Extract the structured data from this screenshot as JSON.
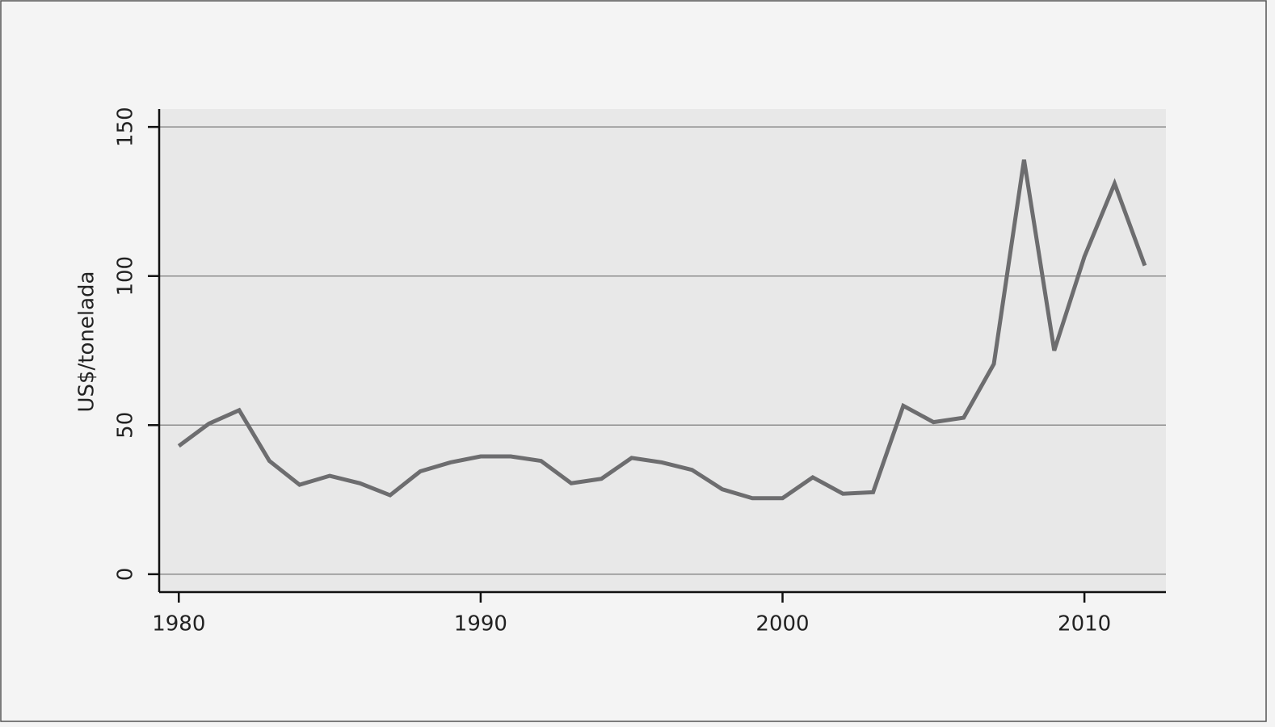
{
  "chart_data": {
    "type": "line",
    "y_label": "US$/tonelada",
    "x": [
      1980,
      1981,
      1982,
      1983,
      1984,
      1985,
      1986,
      1987,
      1988,
      1989,
      1990,
      1991,
      1992,
      1993,
      1994,
      1995,
      1996,
      1997,
      1998,
      1999,
      2000,
      2001,
      2002,
      2003,
      2004,
      2005,
      2006,
      2007,
      2008,
      2009,
      2010,
      2011,
      2012
    ],
    "series": [
      {
        "color": "#6d6d6f",
        "values": [
          43,
          50.5,
          55,
          38,
          30,
          33,
          30.5,
          26.5,
          34.5,
          37.5,
          39.5,
          39.5,
          38,
          30.5,
          32,
          39,
          37.5,
          35,
          28.5,
          25.5,
          25.5,
          32.5,
          27,
          27.5,
          56.5,
          51,
          52.5,
          70.5,
          139,
          75,
          106.5,
          131,
          103.5
        ]
      }
    ],
    "xlim": [
      1979.35,
      2012.7
    ],
    "xticks": [
      1980,
      1990,
      2000,
      2010
    ],
    "ylim": [
      -6,
      156
    ],
    "yticks": [
      0,
      50,
      100,
      150
    ],
    "grid": true
  }
}
